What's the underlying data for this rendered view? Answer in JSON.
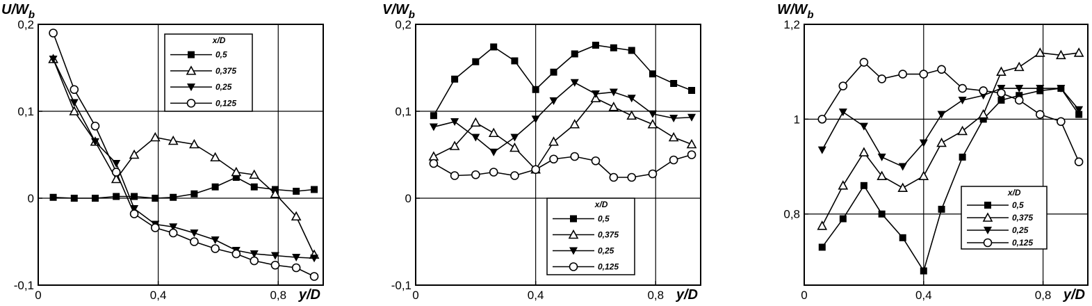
{
  "chart_data": [
    {
      "type": "line",
      "ylabel": "U/W",
      "ylabel_sub": "b",
      "xlabel": "y/D",
      "xlim": [
        0,
        0.95
      ],
      "ylim": [
        -0.1,
        0.2
      ],
      "xticks": [
        0,
        0.4,
        0.8
      ],
      "xtick_labels": [
        "0",
        "0,4",
        "0,8"
      ],
      "yticks": [
        -0.1,
        0,
        0.1,
        0.2
      ],
      "ytick_labels": [
        "-0,1",
        "0",
        "0,1",
        "0,2"
      ],
      "grid_x": [
        0.4,
        0.8
      ],
      "grid_y": [
        0,
        0.1
      ],
      "legend_title": "x/D",
      "legend_placement": "top-center",
      "series": [
        {
          "name": "0,5",
          "marker": "square",
          "x": [
            0.05,
            0.12,
            0.19,
            0.26,
            0.32,
            0.39,
            0.45,
            0.52,
            0.59,
            0.66,
            0.72,
            0.79,
            0.86,
            0.92
          ],
          "y": [
            0.001,
            0.0,
            0.0,
            0.002,
            0.002,
            0.0,
            0.001,
            0.005,
            0.013,
            0.024,
            0.013,
            0.01,
            0.008,
            0.01
          ]
        },
        {
          "name": "0,375",
          "marker": "triangle-up",
          "x": [
            0.05,
            0.12,
            0.19,
            0.26,
            0.32,
            0.39,
            0.45,
            0.52,
            0.59,
            0.66,
            0.72,
            0.79,
            0.86,
            0.92
          ],
          "y": [
            0.16,
            0.1,
            0.065,
            0.022,
            0.05,
            0.07,
            0.066,
            0.062,
            0.047,
            0.03,
            0.027,
            0.005,
            -0.021,
            -0.065
          ]
        },
        {
          "name": "0,25",
          "marker": "triangle-down",
          "x": [
            0.05,
            0.12,
            0.19,
            0.26,
            0.32,
            0.39,
            0.45,
            0.52,
            0.59,
            0.66,
            0.72,
            0.79,
            0.86,
            0.92
          ],
          "y": [
            0.16,
            0.11,
            0.065,
            0.04,
            -0.012,
            -0.03,
            -0.033,
            -0.04,
            -0.048,
            -0.06,
            -0.064,
            -0.066,
            -0.068,
            -0.069
          ]
        },
        {
          "name": "0,125",
          "marker": "circle",
          "x": [
            0.05,
            0.12,
            0.19,
            0.26,
            0.32,
            0.39,
            0.45,
            0.52,
            0.59,
            0.66,
            0.72,
            0.79,
            0.86,
            0.92
          ],
          "y": [
            0.19,
            0.125,
            0.083,
            0.03,
            -0.018,
            -0.034,
            -0.04,
            -0.05,
            -0.058,
            -0.064,
            -0.072,
            -0.077,
            -0.08,
            -0.09
          ]
        }
      ]
    },
    {
      "type": "line",
      "ylabel": "V/W",
      "ylabel_sub": "b",
      "xlabel": "y/D",
      "xlim": [
        0,
        0.95
      ],
      "ylim": [
        -0.1,
        0.2
      ],
      "xticks": [
        0,
        0.4,
        0.8
      ],
      "xtick_labels": [
        "0",
        "0,4",
        "0,8"
      ],
      "yticks": [
        -0.1,
        0,
        0.1,
        0.2
      ],
      "ytick_labels": [
        "-0,1",
        "0",
        "0,1",
        "0,2"
      ],
      "grid_x": [
        0.4,
        0.8
      ],
      "grid_y": [
        0,
        0.1
      ],
      "legend_title": "x/D",
      "legend_placement": "bottom-center",
      "series": [
        {
          "name": "0,5",
          "marker": "square",
          "x": [
            0.06,
            0.13,
            0.2,
            0.26,
            0.33,
            0.4,
            0.46,
            0.53,
            0.6,
            0.66,
            0.72,
            0.79,
            0.86,
            0.92
          ],
          "y": [
            0.095,
            0.137,
            0.157,
            0.174,
            0.158,
            0.125,
            0.145,
            0.166,
            0.176,
            0.173,
            0.17,
            0.143,
            0.132,
            0.124
          ]
        },
        {
          "name": "0,375",
          "marker": "triangle-up",
          "x": [
            0.06,
            0.13,
            0.2,
            0.26,
            0.33,
            0.4,
            0.46,
            0.53,
            0.6,
            0.66,
            0.72,
            0.79,
            0.86,
            0.92
          ],
          "y": [
            0.048,
            0.06,
            0.087,
            0.075,
            0.058,
            0.033,
            0.065,
            0.085,
            0.115,
            0.105,
            0.095,
            0.085,
            0.07,
            0.062
          ]
        },
        {
          "name": "0,25",
          "marker": "triangle-down",
          "x": [
            0.06,
            0.13,
            0.2,
            0.26,
            0.33,
            0.4,
            0.46,
            0.53,
            0.6,
            0.66,
            0.72,
            0.79,
            0.86,
            0.92
          ],
          "y": [
            0.082,
            0.088,
            0.07,
            0.053,
            0.07,
            0.091,
            0.112,
            0.133,
            0.12,
            0.122,
            0.115,
            0.097,
            0.092,
            0.093
          ]
        },
        {
          "name": "0,125",
          "marker": "circle",
          "x": [
            0.06,
            0.13,
            0.2,
            0.26,
            0.33,
            0.4,
            0.46,
            0.53,
            0.6,
            0.66,
            0.72,
            0.79,
            0.86,
            0.92
          ],
          "y": [
            0.04,
            0.026,
            0.027,
            0.03,
            0.026,
            0.033,
            0.045,
            0.048,
            0.043,
            0.024,
            0.024,
            0.028,
            0.044,
            0.05
          ]
        }
      ]
    },
    {
      "type": "line",
      "ylabel": "W/W",
      "ylabel_sub": "b",
      "xlabel": "y/D",
      "xlim": [
        0,
        0.95
      ],
      "ylim": [
        0.65,
        1.2
      ],
      "xticks": [
        0,
        0.4,
        0.8
      ],
      "xtick_labels": [
        "0",
        "0,4",
        "0,8"
      ],
      "yticks": [
        0.8,
        1.0,
        1.2
      ],
      "ytick_labels": [
        "0,8",
        "1",
        "1,2"
      ],
      "grid_x": [
        0.4,
        0.8
      ],
      "grid_y": [
        0.8,
        1.0
      ],
      "legend_title": "x/D",
      "legend_placement": "right",
      "series": [
        {
          "name": "0,5",
          "marker": "square",
          "x": [
            0.06,
            0.13,
            0.2,
            0.26,
            0.33,
            0.4,
            0.46,
            0.53,
            0.6,
            0.66,
            0.72,
            0.79,
            0.86,
            0.92
          ],
          "y": [
            0.73,
            0.79,
            0.86,
            0.8,
            0.75,
            0.68,
            0.81,
            0.92,
            1.0,
            1.04,
            1.05,
            1.06,
            1.065,
            1.01
          ]
        },
        {
          "name": "0,375",
          "marker": "triangle-up",
          "x": [
            0.06,
            0.13,
            0.2,
            0.26,
            0.33,
            0.4,
            0.46,
            0.53,
            0.6,
            0.66,
            0.72,
            0.79,
            0.86,
            0.92
          ],
          "y": [
            0.775,
            0.86,
            0.93,
            0.88,
            0.855,
            0.88,
            0.95,
            0.975,
            1.01,
            1.1,
            1.11,
            1.14,
            1.135,
            1.14
          ]
        },
        {
          "name": "0,25",
          "marker": "triangle-down",
          "x": [
            0.06,
            0.13,
            0.2,
            0.26,
            0.33,
            0.4,
            0.46,
            0.53,
            0.6,
            0.66,
            0.72,
            0.79,
            0.86,
            0.92
          ],
          "y": [
            0.935,
            1.015,
            0.985,
            0.92,
            0.9,
            0.95,
            1.01,
            1.04,
            1.05,
            1.065,
            1.065,
            1.065,
            1.065,
            1.02
          ]
        },
        {
          "name": "0,125",
          "marker": "circle",
          "x": [
            0.06,
            0.13,
            0.2,
            0.26,
            0.33,
            0.4,
            0.46,
            0.53,
            0.6,
            0.66,
            0.72,
            0.79,
            0.86,
            0.92
          ],
          "y": [
            1.0,
            1.07,
            1.12,
            1.085,
            1.095,
            1.095,
            1.105,
            1.065,
            1.06,
            1.055,
            1.04,
            1.01,
            0.995,
            0.91
          ]
        }
      ]
    }
  ]
}
